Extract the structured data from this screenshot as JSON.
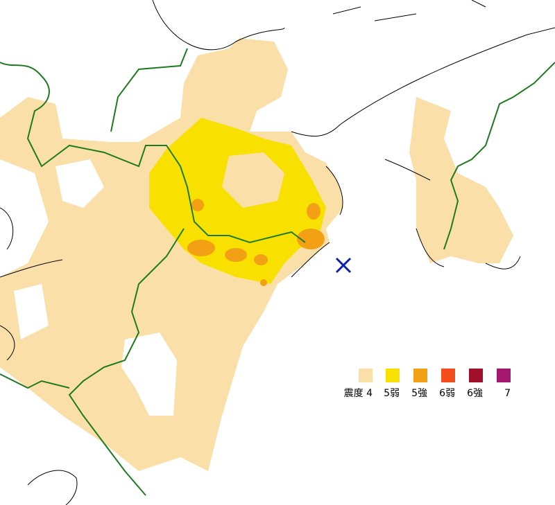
{
  "legend": {
    "items": [
      {
        "label": "震度 4",
        "color": "#fae0a8"
      },
      {
        "label": "5弱",
        "color": "#f8e100"
      },
      {
        "label": "5強",
        "color": "#f3a015"
      },
      {
        "label": "6弱",
        "color": "#f24d1a"
      },
      {
        "label": "6強",
        "color": "#a0102a"
      },
      {
        "label": "7",
        "color": "#a5166e"
      }
    ]
  }
}
